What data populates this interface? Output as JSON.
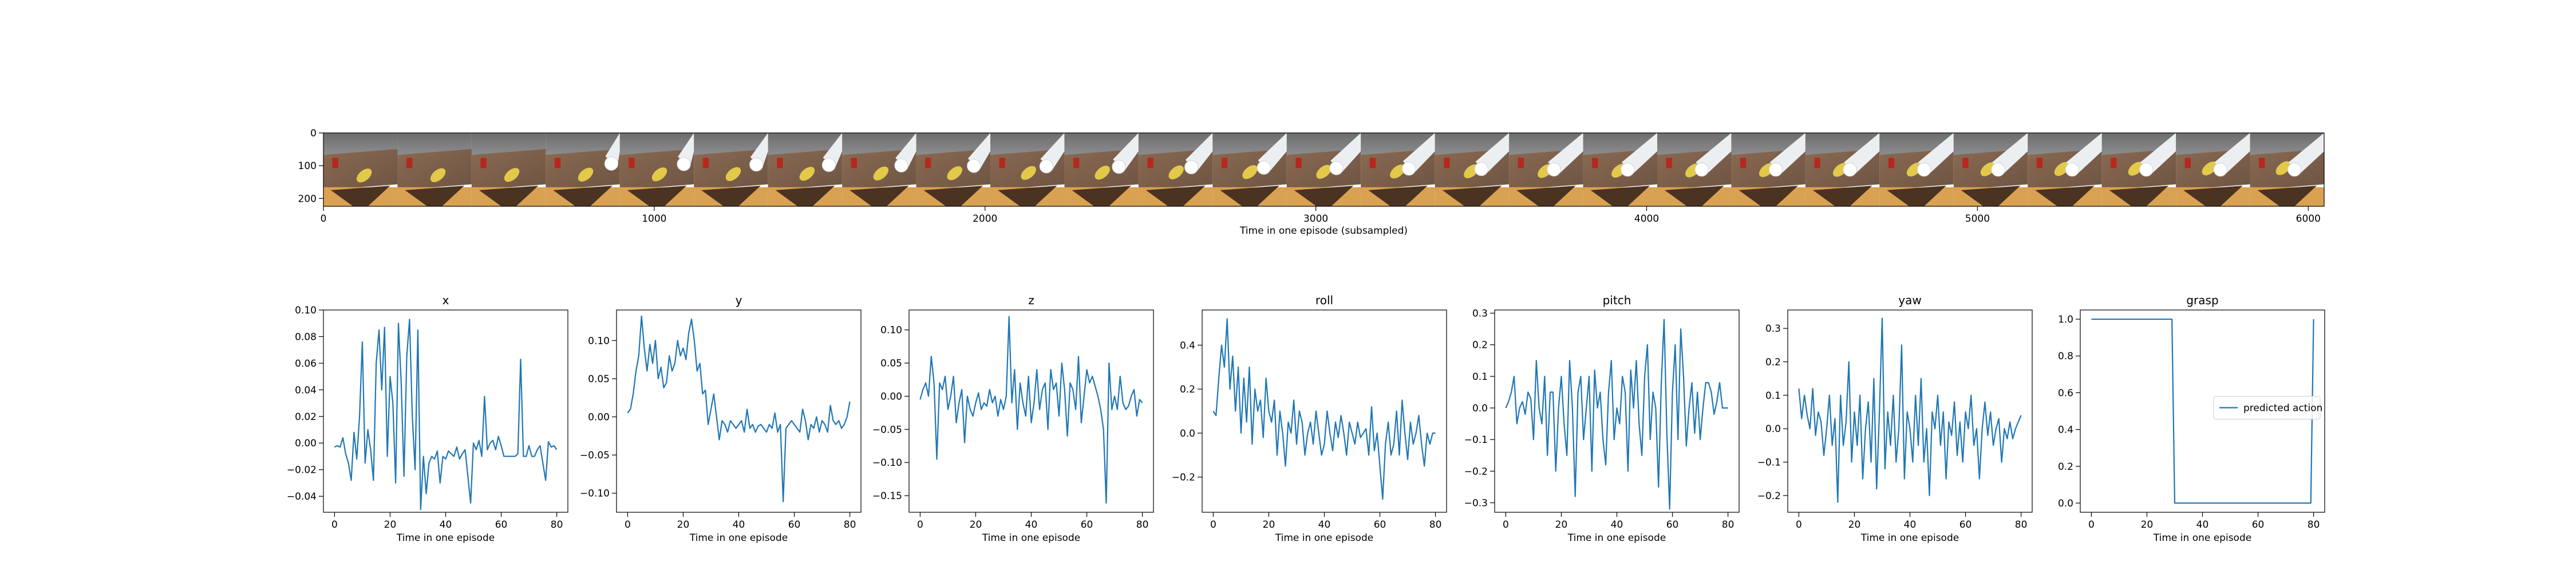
{
  "strip": {
    "xlabel": "Time in one episode (subsampled)",
    "x_ticks": [
      0,
      1000,
      2000,
      3000,
      4000,
      5000,
      6000
    ],
    "y_ticks": [
      0,
      100,
      200
    ],
    "xlim": [
      0,
      6048
    ],
    "ylim": [
      224,
      0
    ],
    "frame_count": 27
  },
  "chart_data": [
    {
      "type": "line",
      "title": "x",
      "xlabel": "Time in one episode",
      "ylabel": "",
      "xlim": [
        -4,
        84
      ],
      "ylim": [
        -0.052,
        0.1
      ],
      "color": "#1f77b4",
      "x_ticks": [
        0,
        20,
        40,
        60,
        80
      ],
      "y_ticks": [
        -0.04,
        -0.02,
        0.0,
        0.02,
        0.04,
        0.06,
        0.08,
        0.1
      ],
      "y_tick_labels": [
        "−0.04",
        "−0.02",
        "0.00",
        "0.02",
        "0.04",
        "0.06",
        "0.08",
        "0.10"
      ],
      "x": [
        0,
        1,
        2,
        3,
        4,
        5,
        6,
        7,
        8,
        9,
        10,
        11,
        12,
        13,
        14,
        15,
        16,
        17,
        18,
        19,
        20,
        21,
        22,
        23,
        24,
        25,
        26,
        27,
        28,
        29,
        30,
        31,
        32,
        33,
        34,
        35,
        36,
        37,
        38,
        39,
        40,
        41,
        42,
        43,
        44,
        45,
        46,
        47,
        48,
        49,
        50,
        51,
        52,
        53,
        54,
        55,
        56,
        57,
        58,
        59,
        60,
        61,
        62,
        63,
        64,
        65,
        66,
        67,
        68,
        69,
        70,
        71,
        72,
        73,
        74,
        75,
        76,
        77,
        78,
        79,
        80
      ],
      "values": [
        -0.003,
        -0.002,
        -0.003,
        0.004,
        -0.008,
        -0.015,
        -0.028,
        0.008,
        -0.012,
        0.02,
        0.076,
        -0.015,
        0.01,
        -0.005,
        -0.028,
        0.06,
        0.085,
        0.04,
        0.087,
        -0.01,
        0.05,
        0.03,
        -0.03,
        0.09,
        0.045,
        -0.025,
        0.065,
        0.093,
        0.02,
        -0.02,
        0.085,
        -0.05,
        -0.01,
        -0.038,
        -0.015,
        -0.01,
        -0.012,
        -0.006,
        -0.03,
        -0.01,
        -0.012,
        -0.006,
        -0.008,
        -0.01,
        -0.003,
        -0.012,
        -0.008,
        -0.005,
        -0.025,
        -0.045,
        0.0,
        -0.005,
        0.002,
        -0.01,
        0.035,
        -0.005,
        0.0,
        0.002,
        -0.005,
        0.005,
        -0.002,
        -0.01,
        -0.01,
        -0.01,
        -0.01,
        -0.01,
        -0.008,
        0.063,
        -0.01,
        -0.01,
        -0.002,
        -0.01,
        -0.01,
        -0.005,
        -0.002,
        -0.015,
        -0.028,
        0.001,
        -0.003,
        -0.002,
        -0.005
      ]
    },
    {
      "type": "line",
      "title": "y",
      "xlabel": "Time in one episode",
      "ylabel": "",
      "xlim": [
        -4,
        84
      ],
      "ylim": [
        -0.125,
        0.14
      ],
      "color": "#1f77b4",
      "x_ticks": [
        0,
        20,
        40,
        60,
        80
      ],
      "y_ticks": [
        -0.1,
        -0.05,
        0.0,
        0.05,
        0.1
      ],
      "y_tick_labels": [
        "−0.10",
        "−0.05",
        "0.00",
        "0.05",
        "0.10"
      ],
      "x": [
        0,
        1,
        2,
        3,
        4,
        5,
        6,
        7,
        8,
        9,
        10,
        11,
        12,
        13,
        14,
        15,
        16,
        17,
        18,
        19,
        20,
        21,
        22,
        23,
        24,
        25,
        26,
        27,
        28,
        29,
        30,
        31,
        32,
        33,
        34,
        35,
        36,
        37,
        38,
        39,
        40,
        41,
        42,
        43,
        44,
        45,
        46,
        47,
        48,
        49,
        50,
        51,
        52,
        53,
        54,
        55,
        56,
        57,
        58,
        59,
        60,
        61,
        62,
        63,
        64,
        65,
        66,
        67,
        68,
        69,
        70,
        71,
        72,
        73,
        74,
        75,
        76,
        77,
        78,
        79,
        80
      ],
      "values": [
        0.005,
        0.01,
        0.03,
        0.06,
        0.08,
        0.132,
        0.09,
        0.06,
        0.095,
        0.07,
        0.1,
        0.05,
        0.065,
        0.038,
        0.045,
        0.08,
        0.06,
        0.07,
        0.1,
        0.08,
        0.09,
        0.075,
        0.11,
        0.128,
        0.1,
        0.06,
        0.07,
        0.03,
        0.035,
        -0.01,
        0.01,
        0.03,
        0.0,
        -0.03,
        -0.005,
        -0.01,
        -0.02,
        -0.005,
        -0.01,
        -0.015,
        -0.01,
        -0.005,
        -0.02,
        0.01,
        -0.015,
        -0.01,
        -0.02,
        -0.012,
        -0.01,
        -0.015,
        -0.02,
        -0.01,
        -0.015,
        0.005,
        -0.02,
        -0.01,
        -0.111,
        -0.015,
        -0.01,
        -0.005,
        -0.01,
        -0.015,
        -0.02,
        0.01,
        -0.005,
        -0.03,
        -0.01,
        -0.015,
        0.0,
        -0.02,
        -0.005,
        -0.01,
        -0.02,
        0.015,
        -0.005,
        -0.01,
        -0.005,
        -0.015,
        -0.01,
        0.0,
        0.02
      ]
    },
    {
      "type": "line",
      "title": "z",
      "xlabel": "Time in one episode",
      "ylabel": "",
      "xlim": [
        -4,
        84
      ],
      "ylim": [
        -0.175,
        0.13
      ],
      "color": "#1f77b4",
      "x_ticks": [
        0,
        20,
        40,
        60,
        80
      ],
      "y_ticks": [
        -0.15,
        -0.1,
        -0.05,
        0.0,
        0.05,
        0.1
      ],
      "y_tick_labels": [
        "−0.15",
        "−0.10",
        "−0.05",
        "0.00",
        "0.05",
        "0.10"
      ],
      "x": [
        0,
        1,
        2,
        3,
        4,
        5,
        6,
        7,
        8,
        9,
        10,
        11,
        12,
        13,
        14,
        15,
        16,
        17,
        18,
        19,
        20,
        21,
        22,
        23,
        24,
        25,
        26,
        27,
        28,
        29,
        30,
        31,
        32,
        33,
        34,
        35,
        36,
        37,
        38,
        39,
        40,
        41,
        42,
        43,
        44,
        45,
        46,
        47,
        48,
        49,
        50,
        51,
        52,
        53,
        54,
        55,
        56,
        57,
        58,
        59,
        60,
        61,
        62,
        63,
        64,
        65,
        66,
        67,
        68,
        69,
        70,
        71,
        72,
        73,
        74,
        75,
        76,
        77,
        78,
        79,
        80
      ],
      "values": [
        -0.005,
        0.01,
        0.02,
        0.0,
        0.06,
        0.02,
        -0.095,
        0.02,
        0.01,
        0.03,
        -0.02,
        0.0,
        0.03,
        -0.04,
        -0.01,
        0.01,
        -0.07,
        0.0,
        -0.02,
        -0.03,
        -0.01,
        0.005,
        -0.02,
        -0.01,
        -0.015,
        0.01,
        -0.01,
        0.0,
        -0.03,
        -0.005,
        -0.02,
        0.0,
        0.12,
        -0.01,
        0.04,
        -0.05,
        0.02,
        -0.01,
        -0.03,
        0.03,
        -0.04,
        -0.01,
        0.04,
        -0.02,
        0.01,
        0.02,
        -0.05,
        0.04,
        0.01,
        0.02,
        -0.03,
        0.05,
        0.01,
        -0.06,
        0.02,
        0.01,
        -0.02,
        0.06,
        -0.04,
        0.0,
        0.04,
        0.02,
        0.03,
        0.015,
        0.0,
        -0.02,
        -0.05,
        -0.161,
        0.05,
        -0.02,
        0.0,
        -0.02,
        0.03,
        -0.01,
        -0.02,
        -0.015,
        0.0,
        0.01,
        -0.03,
        -0.005,
        -0.01
      ]
    },
    {
      "type": "line",
      "title": "roll",
      "xlabel": "Time in one episode",
      "ylabel": "",
      "xlim": [
        -4,
        84
      ],
      "ylim": [
        -0.36,
        0.56
      ],
      "color": "#1f77b4",
      "x_ticks": [
        0,
        20,
        40,
        60,
        80
      ],
      "y_ticks": [
        -0.2,
        0.0,
        0.2,
        0.4
      ],
      "y_tick_labels": [
        "−0.2",
        "0.0",
        "0.2",
        "0.4"
      ],
      "x": [
        0,
        1,
        2,
        3,
        4,
        5,
        6,
        7,
        8,
        9,
        10,
        11,
        12,
        13,
        14,
        15,
        16,
        17,
        18,
        19,
        20,
        21,
        22,
        23,
        24,
        25,
        26,
        27,
        28,
        29,
        30,
        31,
        32,
        33,
        34,
        35,
        36,
        37,
        38,
        39,
        40,
        41,
        42,
        43,
        44,
        45,
        46,
        47,
        48,
        49,
        50,
        51,
        52,
        53,
        54,
        55,
        56,
        57,
        58,
        59,
        60,
        61,
        62,
        63,
        64,
        65,
        66,
        67,
        68,
        69,
        70,
        71,
        72,
        73,
        74,
        75,
        76,
        77,
        78,
        79,
        80
      ],
      "values": [
        0.1,
        0.08,
        0.25,
        0.4,
        0.3,
        0.52,
        0.2,
        0.35,
        0.1,
        0.3,
        0.0,
        0.25,
        0.05,
        0.3,
        -0.05,
        0.2,
        0.1,
        0.15,
        -0.02,
        0.25,
        0.1,
        0.05,
        0.15,
        -0.1,
        0.1,
        0.0,
        -0.15,
        0.05,
        0.0,
        0.15,
        -0.05,
        0.1,
        0.05,
        -0.1,
        0.0,
        0.05,
        -0.05,
        0.1,
        0.0,
        -0.1,
        -0.05,
        0.1,
        0.0,
        -0.08,
        0.05,
        -0.02,
        0.08,
        0.0,
        -0.1,
        0.05,
        0.0,
        -0.05,
        0.05,
        -0.02,
        0.0,
        0.02,
        -0.1,
        0.12,
        -0.08,
        0.0,
        -0.15,
        -0.3,
        -0.05,
        0.05,
        -0.1,
        -0.05,
        0.1,
        -0.1,
        0.15,
        0.0,
        -0.12,
        0.05,
        -0.05,
        0.0,
        0.08,
        -0.05,
        -0.15,
        0.0,
        -0.05,
        0.0,
        0.0
      ]
    },
    {
      "type": "line",
      "title": "pitch",
      "xlabel": "Time in one episode",
      "ylabel": "",
      "xlim": [
        -4,
        84
      ],
      "ylim": [
        -0.33,
        0.31
      ],
      "color": "#1f77b4",
      "x_ticks": [
        0,
        20,
        40,
        60,
        80
      ],
      "y_ticks": [
        -0.3,
        -0.2,
        -0.1,
        0.0,
        0.1,
        0.2,
        0.3
      ],
      "y_tick_labels": [
        "−0.3",
        "−0.2",
        "−0.1",
        "0.0",
        "0.1",
        "0.2",
        "0.3"
      ],
      "x": [
        0,
        1,
        2,
        3,
        4,
        5,
        6,
        7,
        8,
        9,
        10,
        11,
        12,
        13,
        14,
        15,
        16,
        17,
        18,
        19,
        20,
        21,
        22,
        23,
        24,
        25,
        26,
        27,
        28,
        29,
        30,
        31,
        32,
        33,
        34,
        35,
        36,
        37,
        38,
        39,
        40,
        41,
        42,
        43,
        44,
        45,
        46,
        47,
        48,
        49,
        50,
        51,
        52,
        53,
        54,
        55,
        56,
        57,
        58,
        59,
        60,
        61,
        62,
        63,
        64,
        65,
        66,
        67,
        68,
        69,
        70,
        71,
        72,
        73,
        74,
        75,
        76,
        77,
        78,
        79,
        80
      ],
      "values": [
        0.0,
        0.02,
        0.05,
        0.1,
        -0.05,
        0.0,
        0.02,
        -0.02,
        0.05,
        0.03,
        -0.1,
        0.15,
        0.0,
        -0.05,
        0.1,
        -0.15,
        0.05,
        0.05,
        -0.2,
        0.0,
        0.1,
        -0.05,
        -0.15,
        0.15,
        0.0,
        -0.28,
        0.05,
        0.1,
        -0.1,
        0.0,
        0.1,
        -0.2,
        0.12,
        0.0,
        0.05,
        -0.1,
        -0.18,
        0.05,
        0.15,
        -0.1,
        0.0,
        -0.05,
        0.1,
        0.05,
        -0.2,
        0.12,
        0.0,
        0.15,
        -0.05,
        -0.15,
        0.1,
        0.2,
        -0.1,
        0.05,
        0.0,
        -0.25,
        0.08,
        0.28,
        -0.08,
        -0.32,
        0.05,
        0.2,
        -0.1,
        0.25,
        0.1,
        -0.12,
        0.0,
        0.08,
        -0.08,
        0.05,
        -0.1,
        0.0,
        0.08,
        0.08,
        0.05,
        -0.02,
        0.02,
        0.08,
        0.0,
        0.0,
        0.0
      ]
    },
    {
      "type": "line",
      "title": "yaw",
      "xlabel": "Time in one episode",
      "ylabel": "",
      "xlim": [
        -4,
        84
      ],
      "ylim": [
        -0.25,
        0.355
      ],
      "color": "#1f77b4",
      "x_ticks": [
        0,
        20,
        40,
        60,
        80
      ],
      "y_ticks": [
        -0.2,
        -0.1,
        0.0,
        0.1,
        0.2,
        0.3
      ],
      "y_tick_labels": [
        "−0.2",
        "−0.1",
        "0.0",
        "0.1",
        "0.2",
        "0.3"
      ],
      "x": [
        0,
        1,
        2,
        3,
        4,
        5,
        6,
        7,
        8,
        9,
        10,
        11,
        12,
        13,
        14,
        15,
        16,
        17,
        18,
        19,
        20,
        21,
        22,
        23,
        24,
        25,
        26,
        27,
        28,
        29,
        30,
        31,
        32,
        33,
        34,
        35,
        36,
        37,
        38,
        39,
        40,
        41,
        42,
        43,
        44,
        45,
        46,
        47,
        48,
        49,
        50,
        51,
        52,
        53,
        54,
        55,
        56,
        57,
        58,
        59,
        60,
        61,
        62,
        63,
        64,
        65,
        66,
        67,
        68,
        69,
        70,
        71,
        72,
        73,
        74,
        75,
        76,
        77,
        78,
        79,
        80
      ],
      "values": [
        0.12,
        0.03,
        0.1,
        0.04,
        0.0,
        0.12,
        -0.02,
        0.05,
        0.02,
        -0.08,
        0.0,
        0.1,
        -0.05,
        0.03,
        -0.22,
        0.1,
        -0.05,
        0.02,
        0.2,
        -0.1,
        0.05,
        -0.05,
        0.1,
        -0.15,
        0.0,
        0.08,
        -0.1,
        0.15,
        -0.18,
        0.05,
        0.33,
        -0.12,
        0.05,
        -0.05,
        0.1,
        -0.1,
        0.0,
        0.25,
        -0.15,
        0.05,
        0.0,
        -0.1,
        0.1,
        -0.05,
        0.15,
        -0.1,
        0.0,
        -0.2,
        0.05,
        0.0,
        0.1,
        -0.05,
        0.05,
        -0.15,
        0.02,
        -0.02,
        0.08,
        -0.08,
        0.02,
        -0.1,
        0.05,
        0.0,
        0.1,
        -0.05,
        0.0,
        -0.15,
        0.0,
        0.08,
        -0.02,
        0.05,
        -0.05,
        0.0,
        0.03,
        -0.1,
        0.0,
        -0.03,
        0.02,
        -0.03,
        0.0,
        0.02,
        0.04
      ]
    },
    {
      "type": "line",
      "title": "grasp",
      "xlabel": "Time in one episode",
      "ylabel": "",
      "xlim": [
        -4,
        84
      ],
      "ylim": [
        -0.05,
        1.05
      ],
      "color": "#1f77b4",
      "x_ticks": [
        0,
        20,
        40,
        60,
        80
      ],
      "y_ticks": [
        0.0,
        0.2,
        0.4,
        0.6,
        0.8,
        1.0
      ],
      "y_tick_labels": [
        "0.0",
        "0.2",
        "0.4",
        "0.6",
        "0.8",
        "1.0"
      ],
      "legend": {
        "label": "predicted action",
        "placement": "center-right"
      },
      "x": [
        0,
        1,
        2,
        3,
        4,
        5,
        6,
        7,
        8,
        9,
        10,
        11,
        12,
        13,
        14,
        15,
        16,
        17,
        18,
        19,
        20,
        21,
        22,
        23,
        24,
        25,
        26,
        27,
        28,
        29,
        30,
        31,
        32,
        33,
        34,
        35,
        36,
        37,
        38,
        39,
        40,
        41,
        42,
        43,
        44,
        45,
        46,
        47,
        48,
        49,
        50,
        51,
        52,
        53,
        54,
        55,
        56,
        57,
        58,
        59,
        60,
        61,
        62,
        63,
        64,
        65,
        66,
        67,
        68,
        69,
        70,
        71,
        72,
        73,
        74,
        75,
        76,
        77,
        78,
        79,
        80
      ],
      "values": [
        1,
        1,
        1,
        1,
        1,
        1,
        1,
        1,
        1,
        1,
        1,
        1,
        1,
        1,
        1,
        1,
        1,
        1,
        1,
        1,
        1,
        1,
        1,
        1,
        1,
        1,
        1,
        1,
        1,
        1,
        0,
        0,
        0,
        0,
        0,
        0,
        0,
        0,
        0,
        0,
        0,
        0,
        0,
        0,
        0,
        0,
        0,
        0,
        0,
        0,
        0,
        0,
        0,
        0,
        0,
        0,
        0,
        0,
        0,
        0,
        0,
        0,
        0,
        0,
        0,
        0,
        0,
        0,
        0,
        0,
        0,
        0,
        0,
        0,
        0,
        0,
        0,
        0,
        0,
        0,
        1
      ]
    }
  ]
}
